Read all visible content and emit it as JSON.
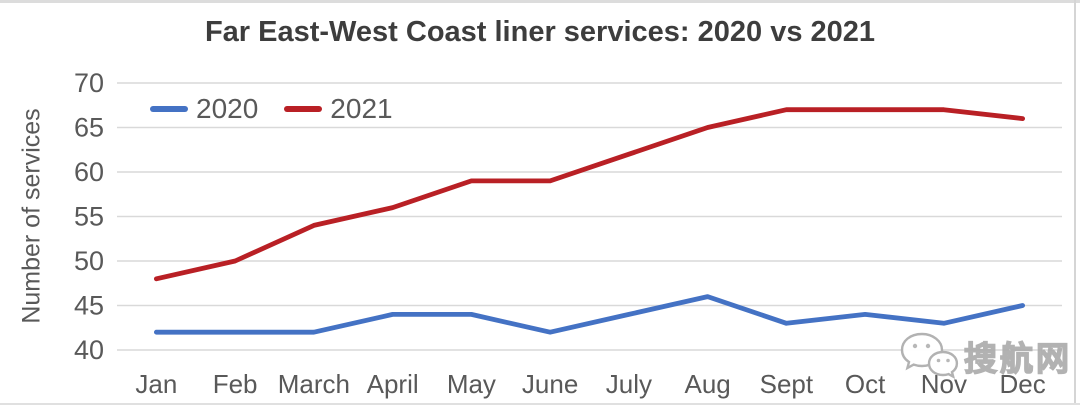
{
  "chart_data": {
    "type": "line",
    "title": "Far East-West Coast liner services: 2020 vs 2021",
    "ylabel": "Number of services",
    "xlabel": "",
    "categories": [
      "Jan",
      "Feb",
      "March",
      "April",
      "May",
      "June",
      "July",
      "Aug",
      "Sept",
      "Oct",
      "Nov",
      "Dec"
    ],
    "series": [
      {
        "name": "2020",
        "color": "#4472C4",
        "values": [
          42,
          42,
          42,
          44,
          44,
          42,
          44,
          46,
          43,
          44,
          43,
          45
        ]
      },
      {
        "name": "2021",
        "color": "#B92025",
        "values": [
          48,
          50,
          54,
          56,
          59,
          59,
          62,
          65,
          67,
          67,
          67,
          66
        ]
      }
    ],
    "ylim": [
      40,
      70
    ],
    "ytick_step": 5,
    "yticks": [
      40,
      45,
      50,
      55,
      60,
      65,
      70
    ],
    "grid": true,
    "grid_color": "#D9D9D9",
    "axis_text_color": "#595959",
    "title_color": "#3d3d3d",
    "legend_position": "top-left-inside"
  },
  "watermark": {
    "text": "搜航网",
    "icon": "wechat-icon"
  }
}
